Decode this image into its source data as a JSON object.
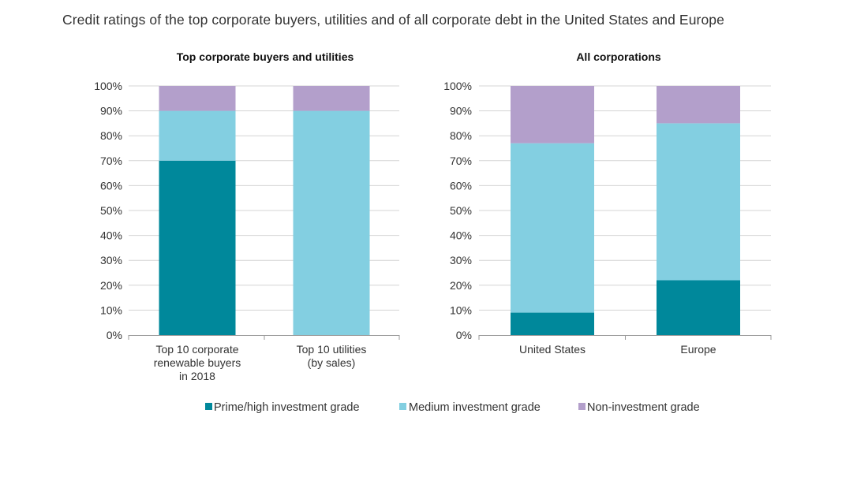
{
  "title": "Credit ratings of the top corporate buyers, utilities and of all corporate debt in the United States and Europe",
  "colors": {
    "prime": "#00889b",
    "medium": "#83cfe1",
    "non": "#b39fcb",
    "grid": "#d4d4d4",
    "axis": "#9a9a9a"
  },
  "chart_data": [
    {
      "type": "bar",
      "stacked": true,
      "title": "Top corporate buyers and utilities",
      "categories": [
        [
          "Top 10 corporate",
          "renewable buyers",
          "in 2018"
        ],
        [
          "Top 10 utilities",
          "(by sales)"
        ]
      ],
      "series": [
        {
          "name": "Prime/high investment grade",
          "values": [
            70,
            0
          ]
        },
        {
          "name": "Medium investment grade",
          "values": [
            20,
            90
          ]
        },
        {
          "name": "Non-investment grade",
          "values": [
            10,
            10
          ]
        }
      ],
      "ylim": [
        0,
        100
      ],
      "yticks": [
        "0%",
        "10%",
        "20%",
        "30%",
        "40%",
        "50%",
        "60%",
        "70%",
        "80%",
        "90%",
        "100%"
      ],
      "xlabel": "",
      "ylabel": ""
    },
    {
      "type": "bar",
      "stacked": true,
      "title": "All corporations",
      "categories": [
        [
          "United States"
        ],
        [
          "Europe"
        ]
      ],
      "series": [
        {
          "name": "Prime/high investment grade",
          "values": [
            9,
            22
          ]
        },
        {
          "name": "Medium investment grade",
          "values": [
            68,
            63
          ]
        },
        {
          "name": "Non-investment grade",
          "values": [
            23,
            15
          ]
        }
      ],
      "ylim": [
        0,
        100
      ],
      "yticks": [
        "0%",
        "10%",
        "20%",
        "30%",
        "40%",
        "50%",
        "60%",
        "70%",
        "80%",
        "90%",
        "100%"
      ],
      "xlabel": "",
      "ylabel": ""
    }
  ],
  "legend": [
    {
      "label": "Prime/high investment grade",
      "color": "#00889b"
    },
    {
      "label": "Medium investment grade",
      "color": "#83cfe1"
    },
    {
      "label": "Non-investment grade",
      "color": "#b39fcb"
    }
  ]
}
